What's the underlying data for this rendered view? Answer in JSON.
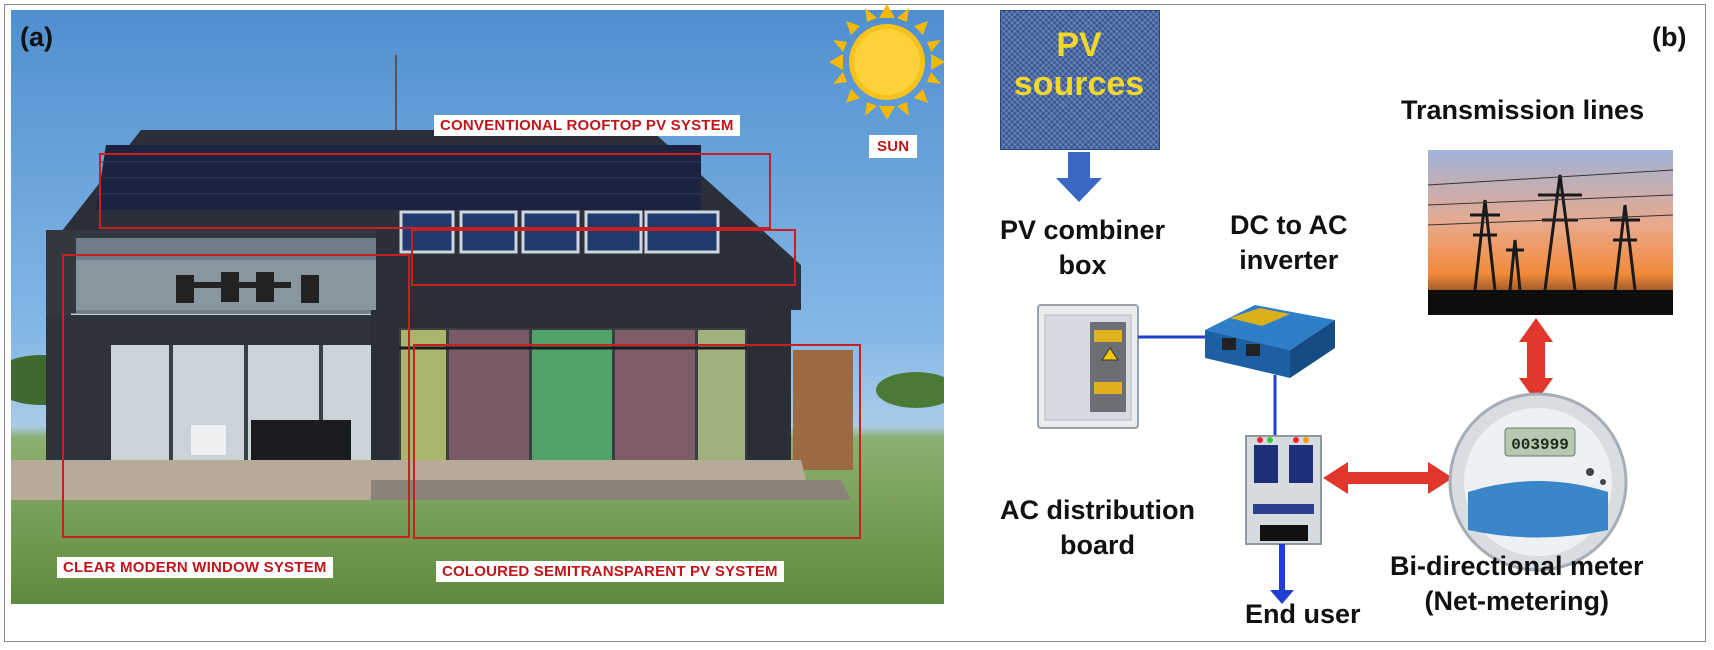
{
  "panel_a": {
    "letter": "(a)",
    "labels": {
      "rooftop": "CONVENTIONAL ROOFTOP PV SYSTEM",
      "sun": "SUN",
      "window": "CLEAR MODERN WINDOW SYSTEM",
      "coloured": "COLOURED SEMITRANSPARENT PV SYSTEM"
    }
  },
  "panel_b": {
    "letter": "(b)",
    "pv_sources": [
      "PV",
      "sources"
    ],
    "combiner": [
      "PV combiner",
      "box"
    ],
    "inverter": [
      "DC to AC",
      "inverter"
    ],
    "transmission": "Transmission lines",
    "ac_board": [
      "AC distribution",
      "board"
    ],
    "end_user": "End user",
    "meter": [
      "Bi-directional meter",
      "(Net-metering)"
    ],
    "meter_display": "003999"
  },
  "colors": {
    "red_outline": "#c8201f",
    "arrow_blue": "#3a66c4",
    "arrow_red": "#e0362b",
    "wire_blue": "#1f3fd1",
    "pv_text": "#f2d82a"
  }
}
